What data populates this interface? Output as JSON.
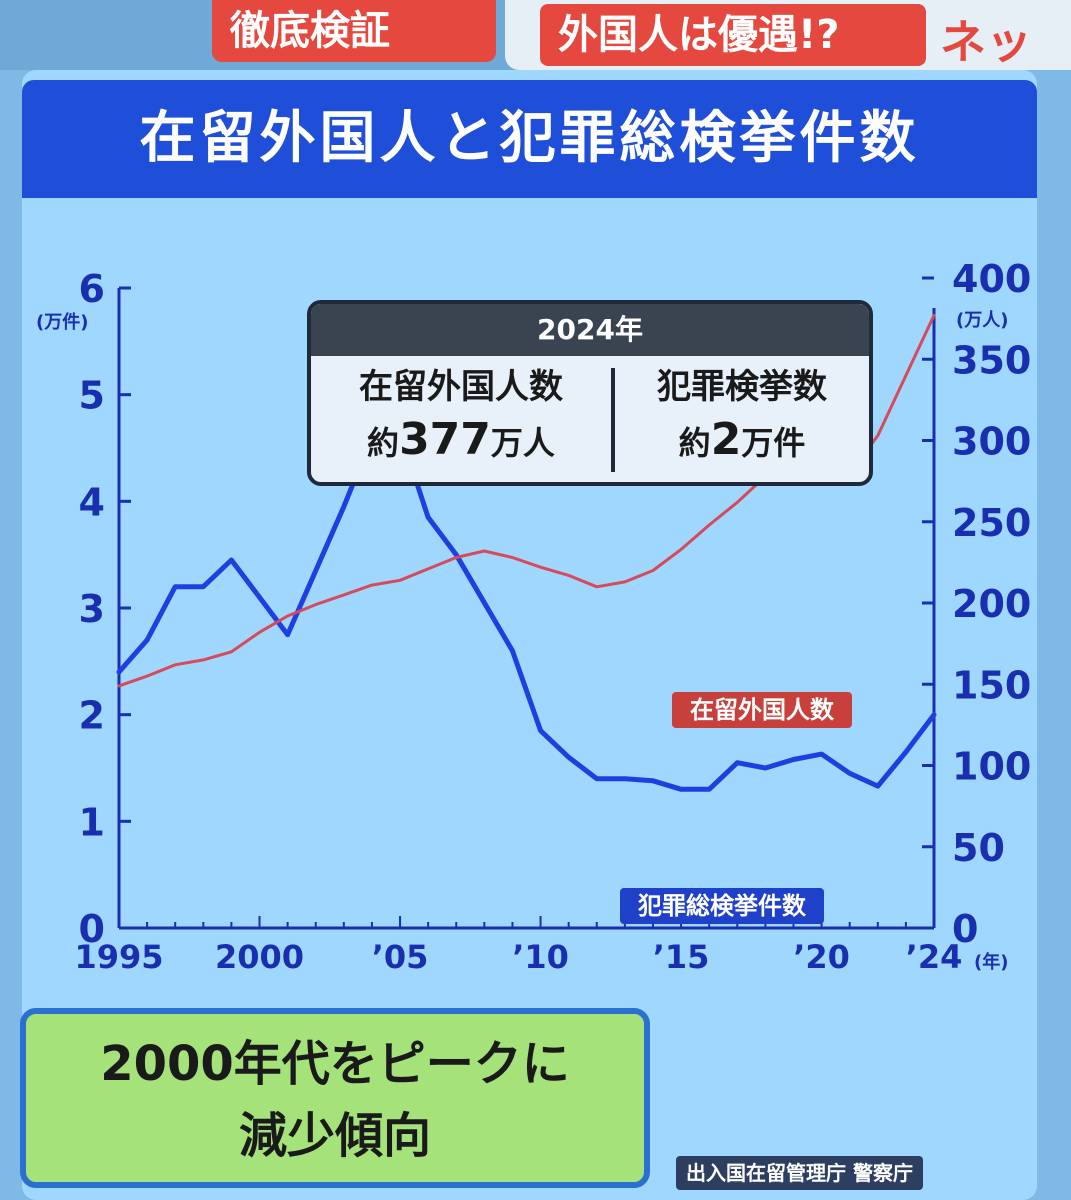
{
  "header": {
    "chip_left": "徹底検証",
    "chip_mid": "外国人は優遇!?",
    "chip_right": "ネッ"
  },
  "title": "在留外国人と犯罪総検挙件数",
  "info_box": {
    "year": "2024年",
    "left_label": "在留外国人数",
    "left_prefix": "約",
    "left_value": "377",
    "left_unit": "万人",
    "right_label": "犯罪検挙数",
    "right_prefix": "約",
    "right_value": "2",
    "right_unit": "万件"
  },
  "series_labels": {
    "foreigners": "在留外国人数",
    "arrests": "犯罪総検挙件数"
  },
  "callout": {
    "line1": "2000年代をピークに",
    "line2": "減少傾向"
  },
  "source": "出入国在留管理庁 警察庁",
  "colors": {
    "arrests_line": "#1f3fe0",
    "foreigners_line": "#d64a5a"
  },
  "chart_data": {
    "type": "line",
    "x": [
      1995,
      1996,
      1997,
      1998,
      1999,
      2000,
      2001,
      2002,
      2003,
      2004,
      2005,
      2006,
      2007,
      2008,
      2009,
      2010,
      2011,
      2012,
      2013,
      2014,
      2015,
      2016,
      2017,
      2018,
      2019,
      2020,
      2021,
      2022,
      2023,
      2024
    ],
    "series": [
      {
        "name": "犯罪総検挙件数",
        "axis": "left",
        "values": [
          2.4,
          2.7,
          3.2,
          3.2,
          3.45,
          3.1,
          2.75,
          3.35,
          3.95,
          4.6,
          4.65,
          3.85,
          3.5,
          3.05,
          2.6,
          1.85,
          1.6,
          1.4,
          1.4,
          1.38,
          1.3,
          1.3,
          1.55,
          1.5,
          1.58,
          1.63,
          1.45,
          1.33,
          1.65,
          2.0
        ]
      },
      {
        "name": "在留外国人数",
        "axis": "right",
        "values": [
          149,
          155,
          162,
          165,
          170,
          182,
          192,
          199,
          205,
          211,
          214,
          221,
          228,
          232,
          228,
          222,
          217,
          210,
          213,
          220,
          233,
          248,
          262,
          278,
          295,
          290,
          280,
          303,
          340,
          377
        ]
      }
    ],
    "left_axis": {
      "label": "(万件)",
      "range": [
        0,
        6
      ],
      "ticks": [
        0,
        1,
        2,
        3,
        4,
        5,
        6
      ]
    },
    "right_axis": {
      "label": "(万人)",
      "range": [
        0,
        400
      ],
      "ticks": [
        0,
        50,
        100,
        150,
        200,
        250,
        300,
        350,
        400
      ]
    },
    "x_ticks": [
      {
        "value": 1995,
        "label": "1995"
      },
      {
        "value": 2000,
        "label": "2000"
      },
      {
        "value": 2005,
        "label": "’05"
      },
      {
        "value": 2010,
        "label": "’10"
      },
      {
        "value": 2015,
        "label": "’15"
      },
      {
        "value": 2020,
        "label": "’20"
      },
      {
        "value": 2024,
        "label": "’24"
      }
    ],
    "x_unit": "(年)",
    "grid": false
  }
}
